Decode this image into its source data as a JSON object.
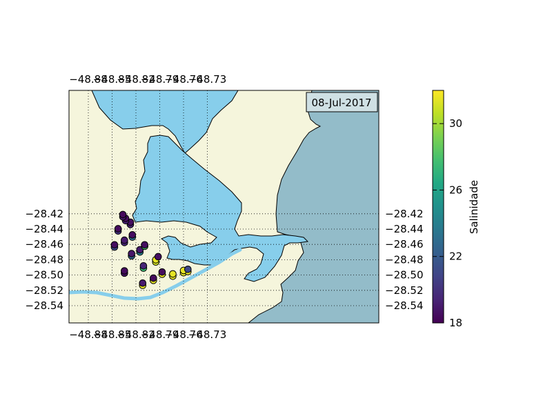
{
  "map": {
    "date_label": "08-Jul-2017",
    "lon_ticks_top": [
      "−48.88",
      "−48.85",
      "−48.82",
      "−48.79",
      "−48.76",
      "−48.73"
    ],
    "lon_ticks_bottom": [
      "−48.88",
      "−48.85",
      "−48.82",
      "−48.79",
      "−48.76",
      "−48.73"
    ],
    "lat_ticks_left": [
      "−28.42",
      "−28.44",
      "−28.46",
      "−28.48",
      "−28.50",
      "−28.52",
      "−28.54"
    ],
    "lat_ticks_right": [
      "−28.42",
      "−28.44",
      "−28.46",
      "−28.48",
      "−28.50",
      "−28.52",
      "−28.54"
    ],
    "colors": {
      "land": "#f5f5dc",
      "lagoon": "#87ceeb",
      "ocean": "#93bcc9",
      "river": "#87ceeb",
      "frame": "#000000"
    }
  },
  "colorbar": {
    "label": "Salinidade",
    "ticks": [
      "18",
      "22",
      "26",
      "30"
    ],
    "range": [
      18,
      32
    ]
  },
  "chart_data": {
    "type": "scatter",
    "xlim": [
      -48.9,
      -48.7
    ],
    "ylim": [
      -28.55,
      -28.4
    ],
    "grid": true,
    "points": [
      {
        "lon": -48.8365,
        "lat": -28.421,
        "sal": 18.3
      },
      {
        "lon": -48.8365,
        "lat": -28.424,
        "sal": 19.0
      },
      {
        "lon": -48.833,
        "lat": -28.426,
        "sal": 18.4
      },
      {
        "lon": -48.833,
        "lat": -28.429,
        "sal": 19.2
      },
      {
        "lon": -48.827,
        "lat": -28.431,
        "sal": 18.5
      },
      {
        "lon": -48.827,
        "lat": -28.434,
        "sal": 19.3
      },
      {
        "lon": -48.8425,
        "lat": -28.4395,
        "sal": 18.4
      },
      {
        "lon": -48.8425,
        "lat": -28.4425,
        "sal": 20.0
      },
      {
        "lon": -48.8245,
        "lat": -28.4475,
        "sal": 18.5
      },
      {
        "lon": -48.8245,
        "lat": -28.4505,
        "sal": 23.0
      },
      {
        "lon": -48.8345,
        "lat": -28.4545,
        "sal": 19.0
      },
      {
        "lon": -48.8345,
        "lat": -28.4575,
        "sal": 19.5
      },
      {
        "lon": -48.847,
        "lat": -28.4605,
        "sal": 18.5
      },
      {
        "lon": -48.847,
        "lat": -28.4635,
        "sal": 21.0
      },
      {
        "lon": -48.809,
        "lat": -28.4605,
        "sal": 18.5
      },
      {
        "lon": -48.809,
        "lat": -28.4625,
        "sal": 28.0
      },
      {
        "lon": -48.815,
        "lat": -28.467,
        "sal": 19.0
      },
      {
        "lon": -48.815,
        "lat": -28.47,
        "sal": 24.0
      },
      {
        "lon": -48.8255,
        "lat": -28.472,
        "sal": 18.9
      },
      {
        "lon": -48.8255,
        "lat": -28.475,
        "sal": 22.5
      },
      {
        "lon": -48.792,
        "lat": -28.476,
        "sal": 18.5
      },
      {
        "lon": -48.795,
        "lat": -28.48,
        "sal": 31.5
      },
      {
        "lon": -48.795,
        "lat": -28.483,
        "sal": 31.0
      },
      {
        "lon": -48.8105,
        "lat": -28.488,
        "sal": 19.5
      },
      {
        "lon": -48.8105,
        "lat": -28.491,
        "sal": 27.5
      },
      {
        "lon": -48.8345,
        "lat": -28.4945,
        "sal": 18.4
      },
      {
        "lon": -48.8345,
        "lat": -28.4975,
        "sal": 18.7
      },
      {
        "lon": -48.787,
        "lat": -28.496,
        "sal": 18.4
      },
      {
        "lon": -48.787,
        "lat": -28.499,
        "sal": 31.5
      },
      {
        "lon": -48.7735,
        "lat": -28.4985,
        "sal": 31.5
      },
      {
        "lon": -48.7735,
        "lat": -28.5015,
        "sal": 31.5
      },
      {
        "lon": -48.76,
        "lat": -28.494,
        "sal": 31.5
      },
      {
        "lon": -48.76,
        "lat": -28.497,
        "sal": 31.5
      },
      {
        "lon": -48.7545,
        "lat": -28.4925,
        "sal": 21.0
      },
      {
        "lon": -48.7545,
        "lat": -28.4955,
        "sal": 31.5
      },
      {
        "lon": -48.798,
        "lat": -28.504,
        "sal": 18.4
      },
      {
        "lon": -48.798,
        "lat": -28.507,
        "sal": 31.5
      },
      {
        "lon": -48.8115,
        "lat": -28.5105,
        "sal": 19.0
      },
      {
        "lon": -48.8115,
        "lat": -28.5135,
        "sal": 31.5
      }
    ]
  }
}
